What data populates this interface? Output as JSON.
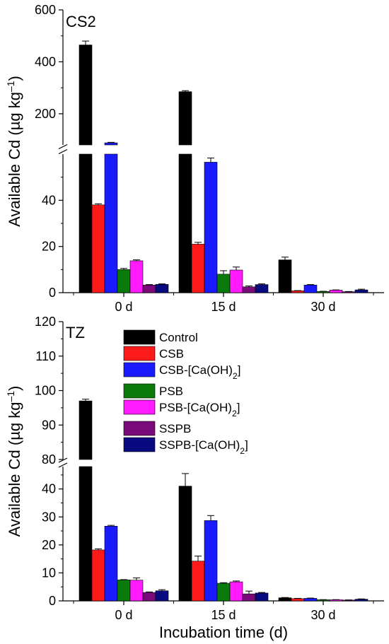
{
  "colors": {
    "Control": "#000000",
    "CSB": "#ff1a1a",
    "CSB-[Ca(OH)2]": "#1a1aff",
    "PSB": "#0a7a0a",
    "PSB-[Ca(OH)2]": "#ff1aff",
    "SSPB": "#7a0a7a",
    "SSPB-[Ca(OH)2]": "#0a0a80"
  },
  "chart_data": [
    {
      "type": "bar",
      "panel_label": "CS2",
      "xlabel": "",
      "ylabel": "Available Cd (µg kg⁻¹)",
      "categories": [
        "0 d",
        "15 d",
        "30 d"
      ],
      "broken_axis": true,
      "lower_ylim": [
        0,
        60
      ],
      "upper_ylim": [
        80,
        600
      ],
      "lower_yticks": [
        0,
        20,
        40
      ],
      "upper_yticks": [
        200,
        400,
        600
      ],
      "series": [
        {
          "name": "Control",
          "values": [
            465,
            285,
            14.2
          ],
          "errors": [
            15,
            4,
            1.2
          ]
        },
        {
          "name": "CSB",
          "values": [
            38,
            21,
            0.8
          ],
          "errors": [
            0.5,
            0.8,
            0.1
          ]
        },
        {
          "name": "CSB-[Ca(OH)2]",
          "values": [
            88,
            56.5,
            3.3
          ],
          "errors": [
            2,
            1.8,
            0.2
          ]
        },
        {
          "name": "PSB",
          "values": [
            10,
            8,
            0.5
          ],
          "errors": [
            0.5,
            1.5,
            0.1
          ]
        },
        {
          "name": "PSB-[Ca(OH)2]",
          "values": [
            13.8,
            9.8,
            1.1
          ],
          "errors": [
            0.4,
            1.3,
            0.1
          ]
        },
        {
          "name": "SSPB",
          "values": [
            3.3,
            2.5,
            0.4
          ],
          "errors": [
            0.2,
            0.4,
            0.1
          ]
        },
        {
          "name": "SSPB-[Ca(OH)2]",
          "values": [
            3.6,
            3.5,
            1.2
          ],
          "errors": [
            0.2,
            0.3,
            0.3
          ]
        }
      ]
    },
    {
      "type": "bar",
      "panel_label": "TZ",
      "xlabel": "Incubation time (d)",
      "ylabel": "Available Cd (µg kg⁻¹)",
      "categories": [
        "0 d",
        "15 d",
        "30 d"
      ],
      "broken_axis": true,
      "lower_ylim": [
        0,
        48
      ],
      "upper_ylim": [
        80,
        120
      ],
      "lower_yticks": [
        0,
        10,
        20,
        30,
        40
      ],
      "upper_yticks": [
        80,
        90,
        100,
        110,
        120
      ],
      "legend": {
        "placement": "top-right",
        "entries": [
          "Control",
          "CSB",
          "CSB-[Ca(OH)2]",
          "PSB",
          "PSB-[Ca(OH)2]",
          "SSPB",
          "SSPB-[Ca(OH)2]"
        ]
      },
      "series": [
        {
          "name": "Control",
          "values": [
            97,
            41,
            1.1
          ],
          "errors": [
            0.5,
            4.5,
            0.1
          ]
        },
        {
          "name": "CSB",
          "values": [
            18.2,
            14.2,
            0.8
          ],
          "errors": [
            0.4,
            1.8,
            0.1
          ]
        },
        {
          "name": "CSB-[Ca(OH)2]",
          "values": [
            26.7,
            28.7,
            0.9
          ],
          "errors": [
            0.3,
            1.8,
            0.1
          ]
        },
        {
          "name": "PSB",
          "values": [
            7.5,
            6.3,
            0.4
          ],
          "errors": [
            0.1,
            0.2,
            0.05
          ]
        },
        {
          "name": "PSB-[Ca(OH)2]",
          "values": [
            7.4,
            6.8,
            0.4
          ],
          "errors": [
            0.8,
            0.3,
            0.05
          ]
        },
        {
          "name": "SSPB",
          "values": [
            3.0,
            2.5,
            0.3
          ],
          "errors": [
            0.2,
            1.0,
            0.05
          ]
        },
        {
          "name": "SSPB-[Ca(OH)2]",
          "values": [
            3.6,
            2.8,
            0.6
          ],
          "errors": [
            0.4,
            0.2,
            0.1
          ]
        }
      ]
    }
  ]
}
